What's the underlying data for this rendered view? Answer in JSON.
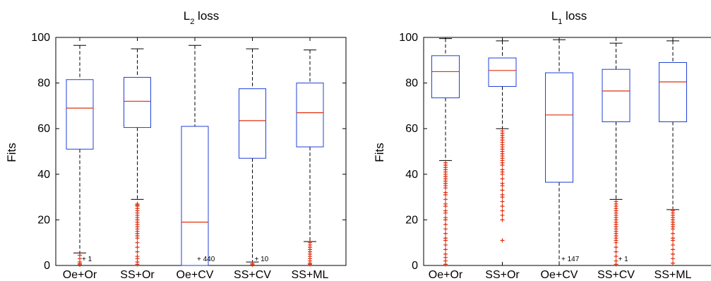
{
  "colors": {
    "box": "#2040d8",
    "median": "#e03010",
    "outlier": "#e03010",
    "whisker": "#000000",
    "axis": "#000000"
  },
  "chart_data": [
    {
      "type": "boxplot",
      "title": {
        "base": "L",
        "sub": "2",
        "rest": " loss"
      },
      "ylabel": "Fits",
      "ylim": [
        0,
        100
      ],
      "yticks": [
        "0",
        "20",
        "40",
        "60",
        "80",
        "100"
      ],
      "grid": false,
      "categories": [
        "Oe+Or",
        "SS+Or",
        "Oe+CV",
        "SS+CV",
        "SS+ML"
      ],
      "boxes": [
        {
          "q1": 51,
          "median": 69,
          "q3": 81.5,
          "whisker_low": 5.5,
          "whisker_high": 96.5,
          "outliers": [
            0.3,
            0.8,
            1.5,
            3,
            4.5
          ],
          "note": "+ 1"
        },
        {
          "q1": 60.5,
          "median": 72,
          "q3": 82.5,
          "whisker_low": 29,
          "whisker_high": 95,
          "outliers": [
            0.5,
            1.5,
            3,
            4,
            6,
            8,
            10,
            12,
            13,
            14,
            15,
            16,
            17,
            18,
            19,
            20,
            21,
            22,
            23,
            24,
            25,
            26,
            26.5,
            27
          ],
          "note": ""
        },
        {
          "q1": 0,
          "median": 19,
          "q3": 61,
          "whisker_low": 0,
          "whisker_high": 96.5,
          "outliers": [],
          "note": "+ 440"
        },
        {
          "q1": 47,
          "median": 63.5,
          "q3": 77.5,
          "whisker_low": 1.5,
          "whisker_high": 95,
          "outliers": [
            0.3,
            0.8
          ],
          "note": "+ 10"
        },
        {
          "q1": 52,
          "median": 67,
          "q3": 80,
          "whisker_low": 10.5,
          "whisker_high": 94.5,
          "outliers": [
            0.5,
            1,
            2,
            3,
            4,
            5,
            6,
            7,
            8,
            9,
            10
          ],
          "note": ""
        }
      ]
    },
    {
      "type": "boxplot",
      "title": {
        "base": "L",
        "sub": "1",
        "rest": " loss"
      },
      "ylabel": "Fits",
      "ylim": [
        0,
        100
      ],
      "yticks": [
        "0",
        "20",
        "40",
        "60",
        "80",
        "100"
      ],
      "grid": false,
      "categories": [
        "Oe+Or",
        "SS+Or",
        "Oe+CV",
        "SS+CV",
        "SS+ML"
      ],
      "boxes": [
        {
          "q1": 73.5,
          "median": 85,
          "q3": 92,
          "whisker_low": 46,
          "whisker_high": 99.5,
          "outliers": [
            0.5,
            2,
            3.5,
            5,
            7,
            9,
            11,
            12,
            14,
            16,
            18,
            20,
            21,
            23,
            24,
            26,
            27,
            29,
            31,
            32,
            34,
            35,
            36,
            37,
            38,
            39,
            40,
            41,
            42,
            43,
            44,
            45
          ],
          "note": ""
        },
        {
          "q1": 78.5,
          "median": 85.5,
          "q3": 91,
          "whisker_low": 60,
          "whisker_high": 98.5,
          "outliers": [
            11,
            20,
            22,
            24,
            26,
            28,
            30,
            31,
            33,
            35,
            36,
            38,
            40,
            41,
            42,
            44,
            45,
            46,
            47,
            48,
            49,
            50,
            51,
            52,
            53,
            54,
            55,
            56,
            57,
            58,
            59
          ],
          "note": ""
        },
        {
          "q1": 36.5,
          "median": 66,
          "q3": 84.5,
          "whisker_low": 0,
          "whisker_high": 99,
          "outliers": [],
          "note": "+ 147"
        },
        {
          "q1": 63,
          "median": 76.5,
          "q3": 86,
          "whisker_low": 29,
          "whisker_high": 97.5,
          "outliers": [
            0.5,
            2,
            4,
            6,
            8,
            10,
            11,
            12,
            13,
            14,
            15,
            16,
            17,
            18,
            19,
            20,
            21,
            22,
            23,
            24,
            25,
            26,
            27,
            28
          ],
          "note": "+ 1"
        },
        {
          "q1": 63,
          "median": 80.5,
          "q3": 89,
          "whisker_low": 24.5,
          "whisker_high": 98.5,
          "outliers": [
            1,
            3,
            5,
            7,
            9,
            11,
            12,
            14,
            16,
            17,
            18,
            19,
            20,
            21,
            22,
            23,
            24
          ],
          "note": ""
        }
      ]
    }
  ]
}
